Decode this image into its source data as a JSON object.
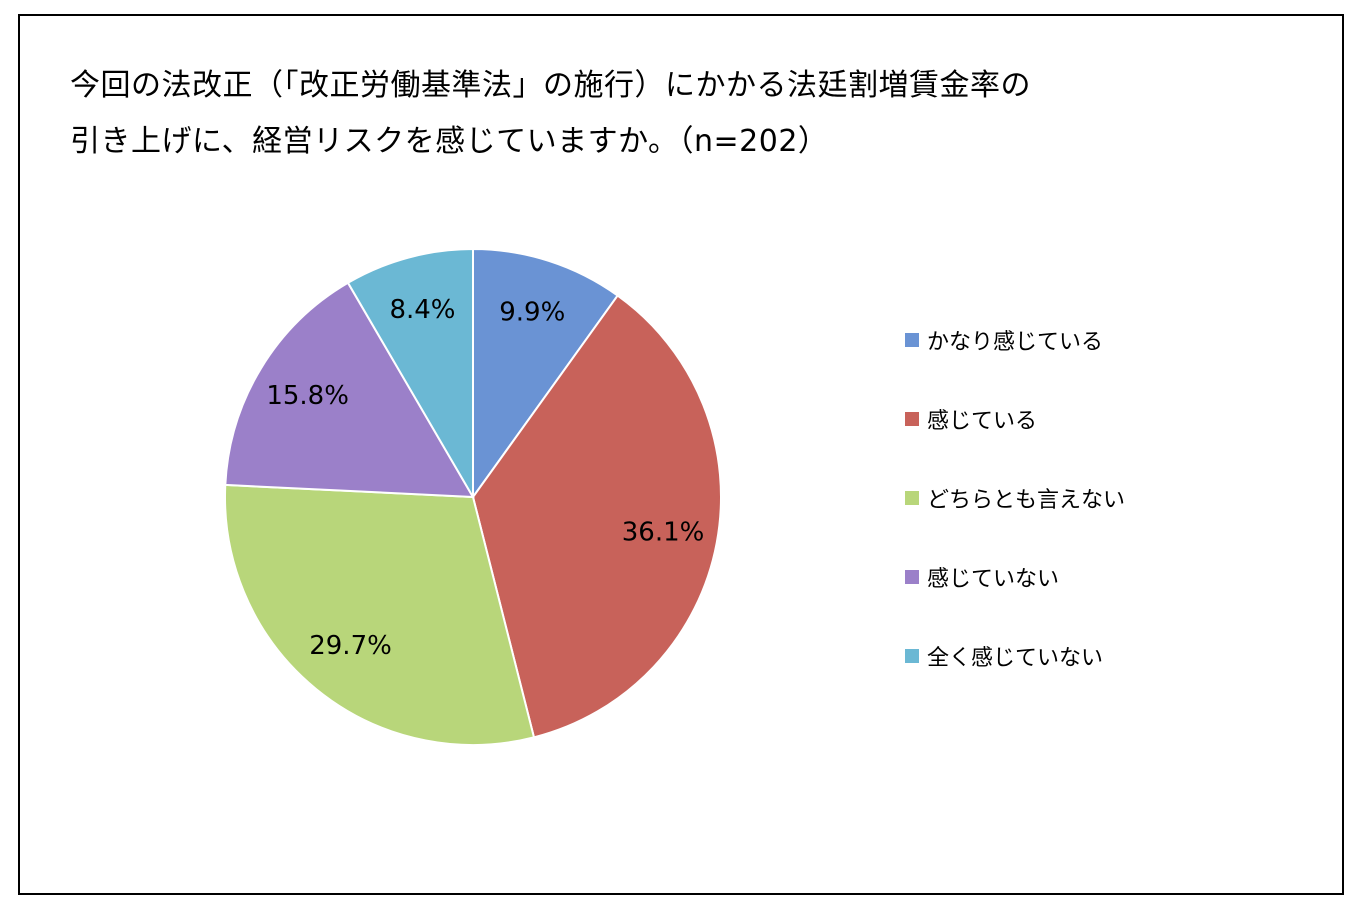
{
  "title_lines": [
    "今回の法改正（「改正労働基準法」の施行）にかかる法廷割増賃金率の",
    "引き上げに、経営リスクを感じていますか。（n=202）"
  ],
  "colors": {
    "border": "#000000",
    "slice_border": "#ffffff"
  },
  "chart_data": {
    "type": "pie",
    "title": "今回の法改正（「改正労働基準法」の施行）にかかる法廷割増賃金率の引き上げに、経営リスクを感じていますか。（n=202）",
    "n": 202,
    "start": "12 o'clock",
    "direction": "clockwise",
    "legend_position": "right",
    "slices": [
      {
        "label": "かなり感じている",
        "value": 9.9,
        "display": "9.9%",
        "color": "#6a93d4"
      },
      {
        "label": "感じている",
        "value": 36.1,
        "display": "36.1%",
        "color": "#c8625a"
      },
      {
        "label": "どちらとも言えない",
        "value": 29.7,
        "display": "29.7%",
        "color": "#b8d67a"
      },
      {
        "label": "感じていない",
        "value": 15.8,
        "display": "15.8%",
        "color": "#9b80c9"
      },
      {
        "label": "全く感じていない",
        "value": 8.4,
        "display": "8.4%",
        "color": "#6bb8d4"
      }
    ]
  }
}
